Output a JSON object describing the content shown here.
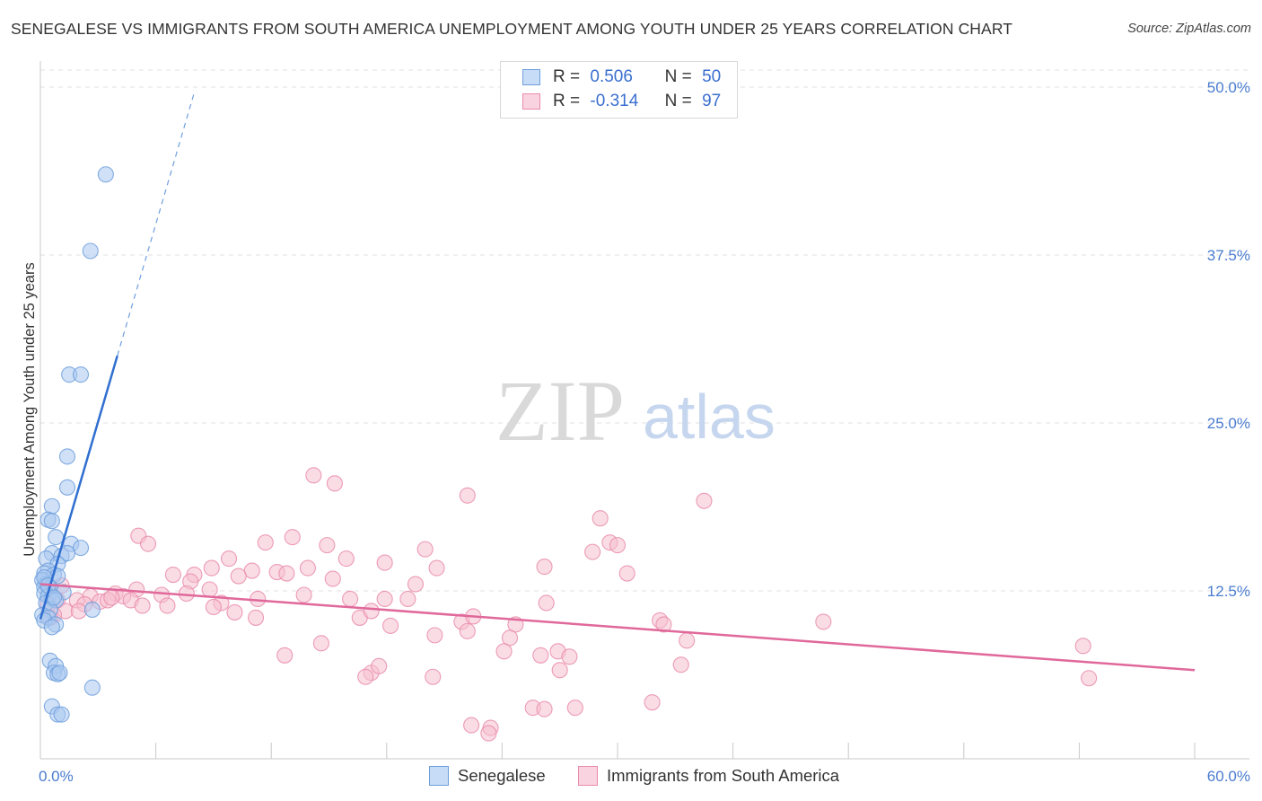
{
  "title": "SENEGALESE VS IMMIGRANTS FROM SOUTH AMERICA UNEMPLOYMENT AMONG YOUTH UNDER 25 YEARS CORRELATION CHART",
  "source": "Source: ZipAtlas.com",
  "watermark": {
    "zip": "ZIP",
    "atlas": "atlas"
  },
  "legend": {
    "rows": [
      {
        "r_label": "R =",
        "r_value": "0.506",
        "n_label": "N =",
        "n_value": "50",
        "color": "#a9c8f0",
        "stroke": "#6f9fdc"
      },
      {
        "r_label": "R =",
        "r_value": "-0.314",
        "n_label": "N =",
        "n_value": "97",
        "color": "#f6bfd0",
        "stroke": "#e98cab"
      }
    ]
  },
  "chart_data": {
    "type": "scatter",
    "title": "SENEGALESE VS IMMIGRANTS FROM SOUTH AMERICA UNEMPLOYMENT AMONG YOUTH UNDER 25 YEARS CORRELATION CHART",
    "xlabel": "",
    "ylabel": "Unemployment Among Youth under 25 years",
    "xlim": [
      0,
      60
    ],
    "ylim": [
      0,
      50
    ],
    "x_tick_labels": [
      "0.0%",
      "60.0%"
    ],
    "y_ticks": [
      12.5,
      25.0,
      37.5,
      50.0
    ],
    "y_tick_labels": [
      "12.5%",
      "25.0%",
      "37.5%",
      "50.0%"
    ],
    "grid": true,
    "series": [
      {
        "name": "Senegalese",
        "color": "#6f9fdc",
        "fill": "#a9c8f0",
        "trend": {
          "x1": 0.0,
          "y1": 10.4,
          "x2": 4.0,
          "y2": 30.0,
          "dash_to_x": 8.0,
          "dash_to_y": 49.6
        },
        "points": [
          [
            3.4,
            43.5
          ],
          [
            2.6,
            37.8
          ],
          [
            1.5,
            28.6
          ],
          [
            2.1,
            28.6
          ],
          [
            1.4,
            22.5
          ],
          [
            1.4,
            20.2
          ],
          [
            0.6,
            18.8
          ],
          [
            0.4,
            17.8
          ],
          [
            0.6,
            17.7
          ],
          [
            0.8,
            16.5
          ],
          [
            1.6,
            16.0
          ],
          [
            2.1,
            15.7
          ],
          [
            0.6,
            15.3
          ],
          [
            1.1,
            15.1
          ],
          [
            1.4,
            15.3
          ],
          [
            0.3,
            14.9
          ],
          [
            0.9,
            14.5
          ],
          [
            0.4,
            14.0
          ],
          [
            0.2,
            13.8
          ],
          [
            0.7,
            13.7
          ],
          [
            0.9,
            13.6
          ],
          [
            0.1,
            13.3
          ],
          [
            0.3,
            13.0
          ],
          [
            0.2,
            12.8
          ],
          [
            0.5,
            12.7
          ],
          [
            1.2,
            12.4
          ],
          [
            0.2,
            12.3
          ],
          [
            0.4,
            12.1
          ],
          [
            0.6,
            11.9
          ],
          [
            0.3,
            11.6
          ],
          [
            0.8,
            11.8
          ],
          [
            0.5,
            11.1
          ],
          [
            2.7,
            11.1
          ],
          [
            0.1,
            10.7
          ],
          [
            0.4,
            10.5
          ],
          [
            0.2,
            10.3
          ],
          [
            0.8,
            10.0
          ],
          [
            0.6,
            9.8
          ],
          [
            0.5,
            7.3
          ],
          [
            0.8,
            6.9
          ],
          [
            0.7,
            6.4
          ],
          [
            0.9,
            6.3
          ],
          [
            1.0,
            6.4
          ],
          [
            2.7,
            5.3
          ],
          [
            0.6,
            3.9
          ],
          [
            0.9,
            3.3
          ],
          [
            1.1,
            3.3
          ],
          [
            0.2,
            13.5
          ],
          [
            0.4,
            12.9
          ],
          [
            0.7,
            12.0
          ]
        ]
      },
      {
        "name": "Immigrants from South America",
        "color": "#e98cab",
        "fill": "#f6bfd0",
        "trend": {
          "x1": 0.0,
          "y1": 13.0,
          "x2": 60.0,
          "y2": 6.6
        },
        "points": [
          [
            14.2,
            21.1
          ],
          [
            15.3,
            20.5
          ],
          [
            22.2,
            19.6
          ],
          [
            34.5,
            19.2
          ],
          [
            29.1,
            17.9
          ],
          [
            5.1,
            16.6
          ],
          [
            13.1,
            16.5
          ],
          [
            11.7,
            16.1
          ],
          [
            5.6,
            16.0
          ],
          [
            14.9,
            15.9
          ],
          [
            29.6,
            16.1
          ],
          [
            9.8,
            14.9
          ],
          [
            15.9,
            14.9
          ],
          [
            17.9,
            14.6
          ],
          [
            8.9,
            14.2
          ],
          [
            11.0,
            14.0
          ],
          [
            12.3,
            13.9
          ],
          [
            12.8,
            13.8
          ],
          [
            13.9,
            14.2
          ],
          [
            20.6,
            14.2
          ],
          [
            26.2,
            14.3
          ],
          [
            6.9,
            13.7
          ],
          [
            8.0,
            13.7
          ],
          [
            10.3,
            13.6
          ],
          [
            15.2,
            13.4
          ],
          [
            19.5,
            13.0
          ],
          [
            7.8,
            13.2
          ],
          [
            1.1,
            12.9
          ],
          [
            2.6,
            12.1
          ],
          [
            3.9,
            12.3
          ],
          [
            5.0,
            12.6
          ],
          [
            4.3,
            12.1
          ],
          [
            6.3,
            12.2
          ],
          [
            7.6,
            12.3
          ],
          [
            9.4,
            11.6
          ],
          [
            11.3,
            11.9
          ],
          [
            13.7,
            12.2
          ],
          [
            16.1,
            11.9
          ],
          [
            17.9,
            11.9
          ],
          [
            19.1,
            11.9
          ],
          [
            3.1,
            11.7
          ],
          [
            4.7,
            11.8
          ],
          [
            1.9,
            11.8
          ],
          [
            0.9,
            11.8
          ],
          [
            2.3,
            11.5
          ],
          [
            3.5,
            11.8
          ],
          [
            5.3,
            11.4
          ],
          [
            6.6,
            11.4
          ],
          [
            9.0,
            11.3
          ],
          [
            10.1,
            10.9
          ],
          [
            11.2,
            10.5
          ],
          [
            16.6,
            10.5
          ],
          [
            17.2,
            11.0
          ],
          [
            21.9,
            10.2
          ],
          [
            22.5,
            10.6
          ],
          [
            24.7,
            10.0
          ],
          [
            1.3,
            11.0
          ],
          [
            0.7,
            10.7
          ],
          [
            0.4,
            11.5
          ],
          [
            26.3,
            11.6
          ],
          [
            24.4,
            9.0
          ],
          [
            18.2,
            9.9
          ],
          [
            20.5,
            9.2
          ],
          [
            22.2,
            9.5
          ],
          [
            32.2,
            10.3
          ],
          [
            32.4,
            10.0
          ],
          [
            40.7,
            10.2
          ],
          [
            14.6,
            8.6
          ],
          [
            12.7,
            7.7
          ],
          [
            24.1,
            8.0
          ],
          [
            26.9,
            8.0
          ],
          [
            33.6,
            8.8
          ],
          [
            27.5,
            7.6
          ],
          [
            26.0,
            7.7
          ],
          [
            17.2,
            6.4
          ],
          [
            17.6,
            6.9
          ],
          [
            16.9,
            6.1
          ],
          [
            20.4,
            6.1
          ],
          [
            27.0,
            6.6
          ],
          [
            33.3,
            7.0
          ],
          [
            25.6,
            3.8
          ],
          [
            26.2,
            3.7
          ],
          [
            31.8,
            4.2
          ],
          [
            27.8,
            3.8
          ],
          [
            22.4,
            2.5
          ],
          [
            23.4,
            2.3
          ],
          [
            23.3,
            1.9
          ],
          [
            54.2,
            8.4
          ],
          [
            54.5,
            6.0
          ],
          [
            8.8,
            12.6
          ],
          [
            30.0,
            15.9
          ],
          [
            3.7,
            12.0
          ],
          [
            0.5,
            10.5
          ],
          [
            2.0,
            11.0
          ],
          [
            28.7,
            15.4
          ],
          [
            30.5,
            13.8
          ],
          [
            20.0,
            15.6
          ]
        ]
      }
    ]
  },
  "bottom_legend": [
    "Senegalese",
    "Immigrants from South America"
  ]
}
